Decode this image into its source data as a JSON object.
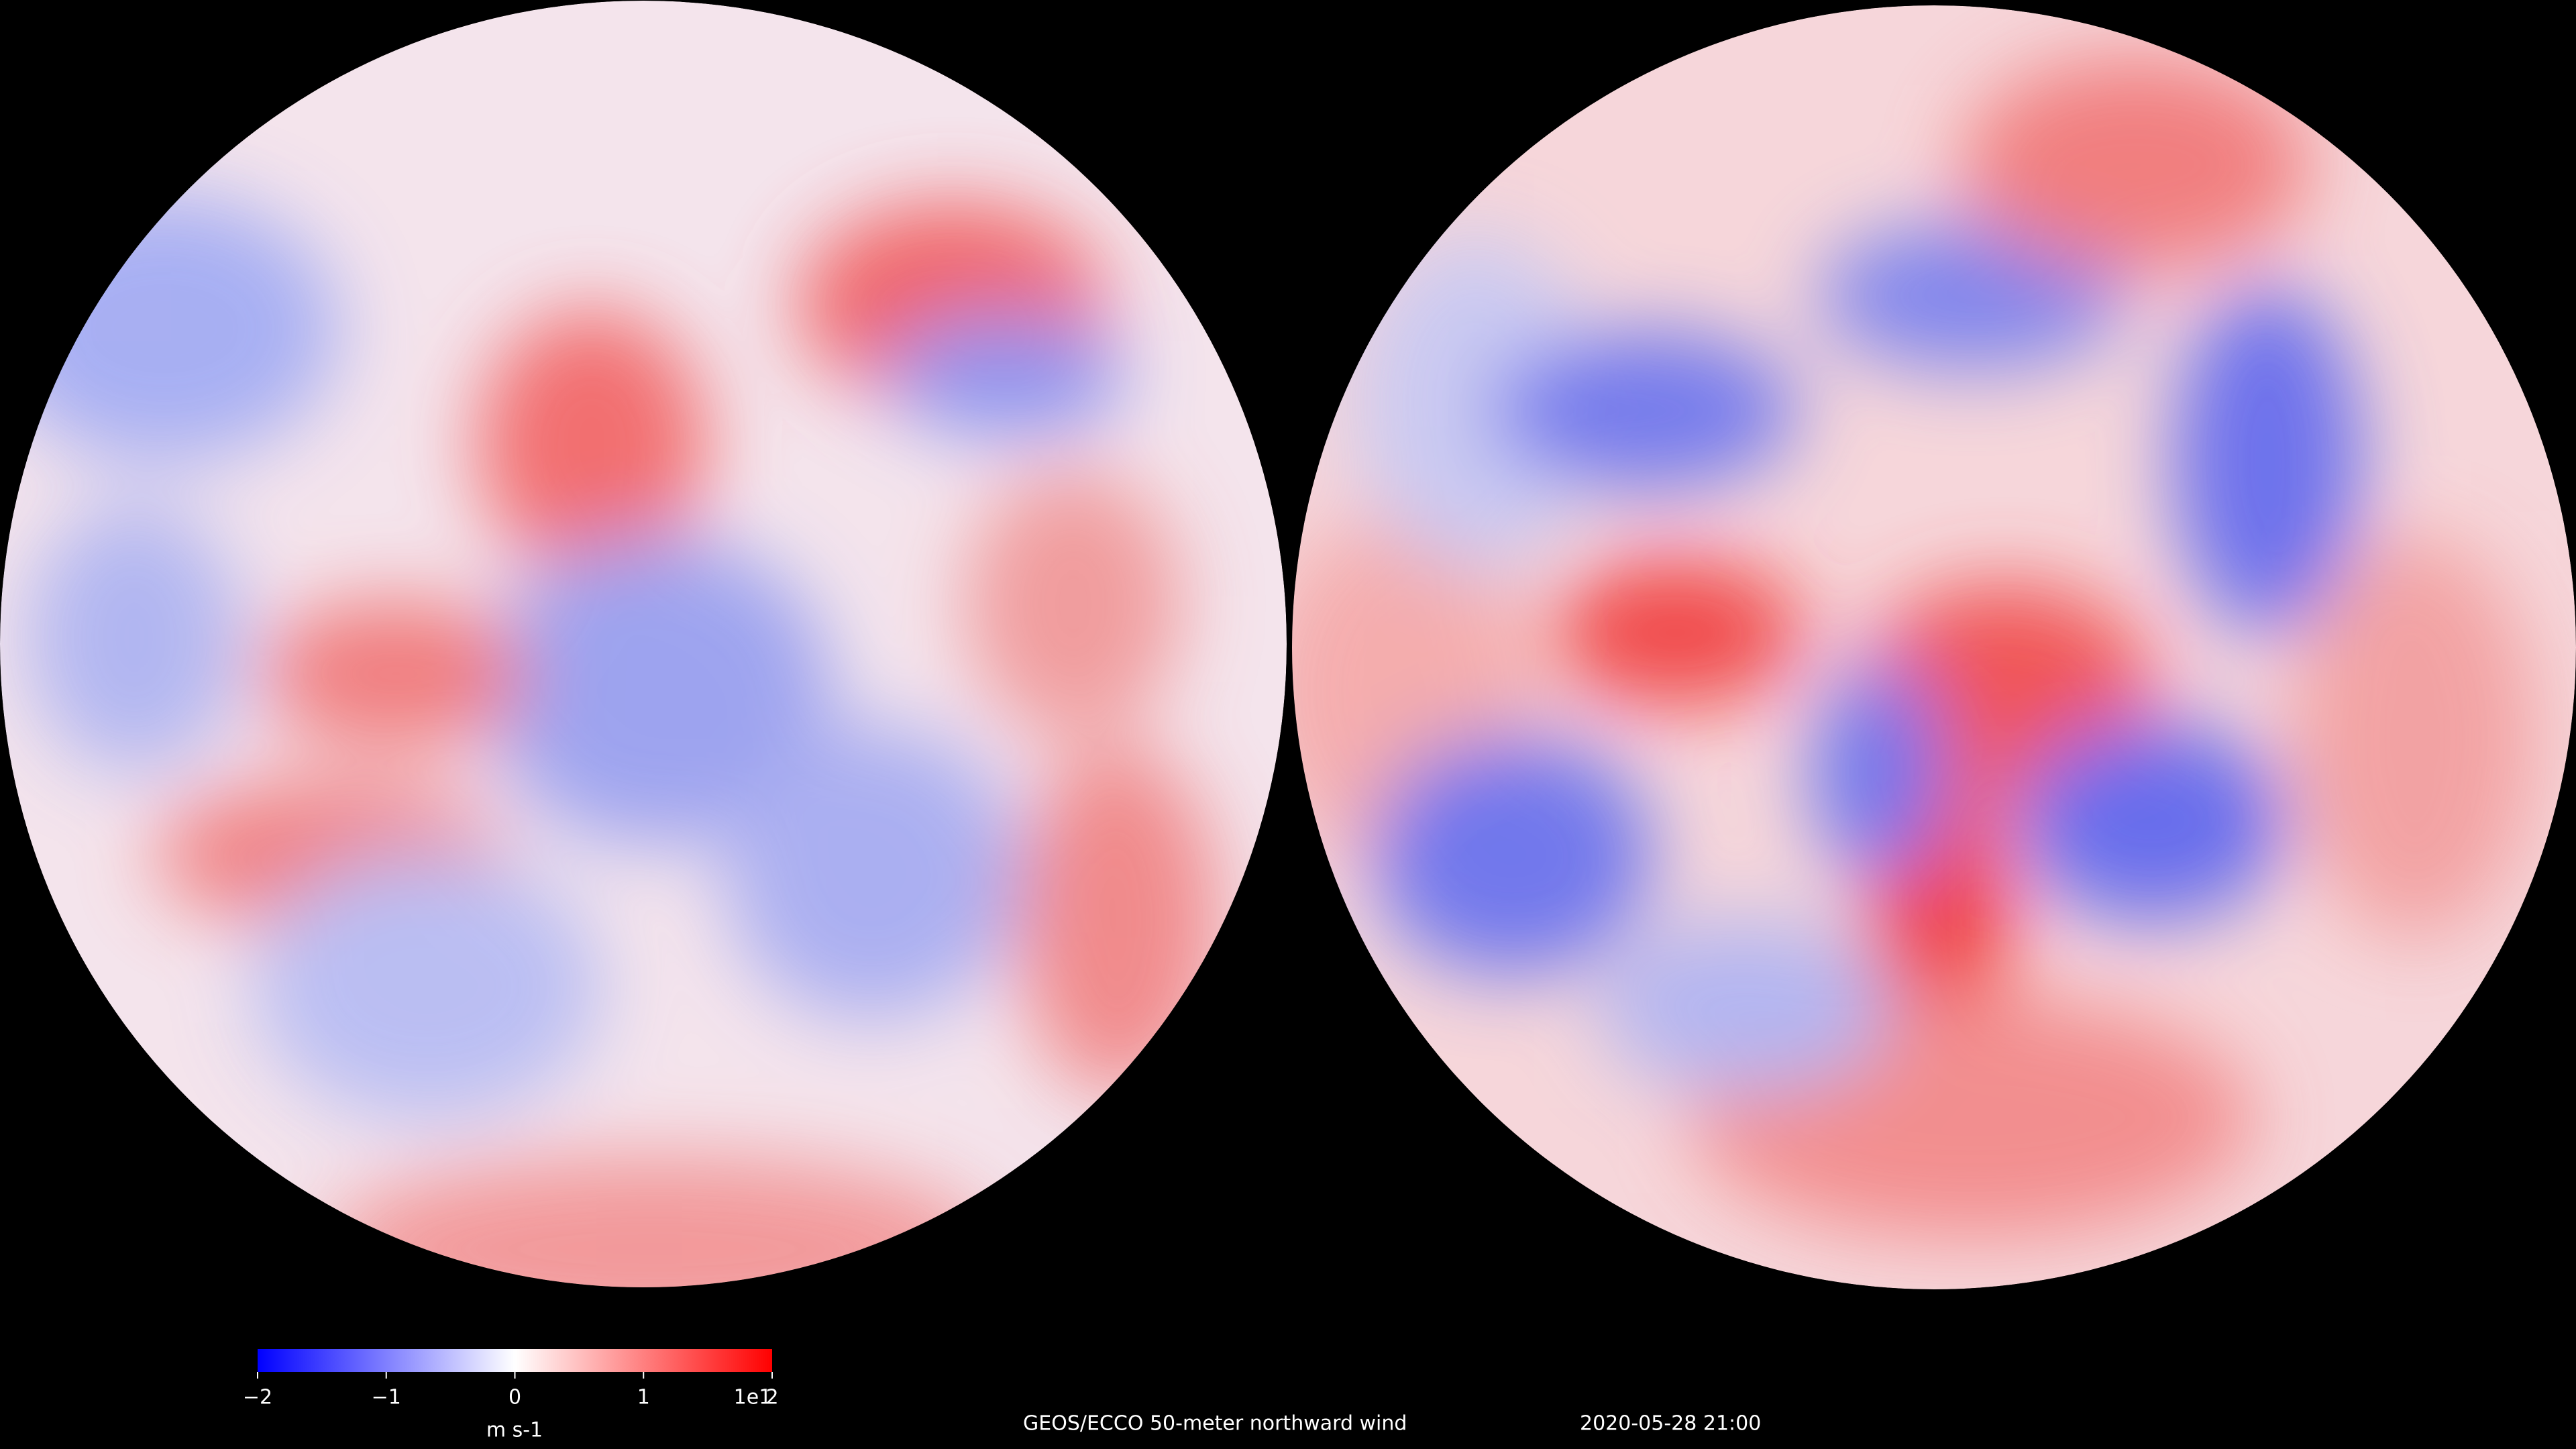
{
  "title": "GEOS/ECCO 50-meter northward wind",
  "timestamp": "2020-05-28 21:00",
  "colorbar": {
    "label": "m s-1",
    "offset_label": "1e1",
    "lim": [
      -2,
      2
    ],
    "ticks": [
      {
        "value": -2,
        "label": "−2"
      },
      {
        "value": -1,
        "label": "−1"
      },
      0,
      1,
      2
    ],
    "colors": [
      "#0000ff",
      "#ffffff",
      "#ff0000"
    ]
  }
}
